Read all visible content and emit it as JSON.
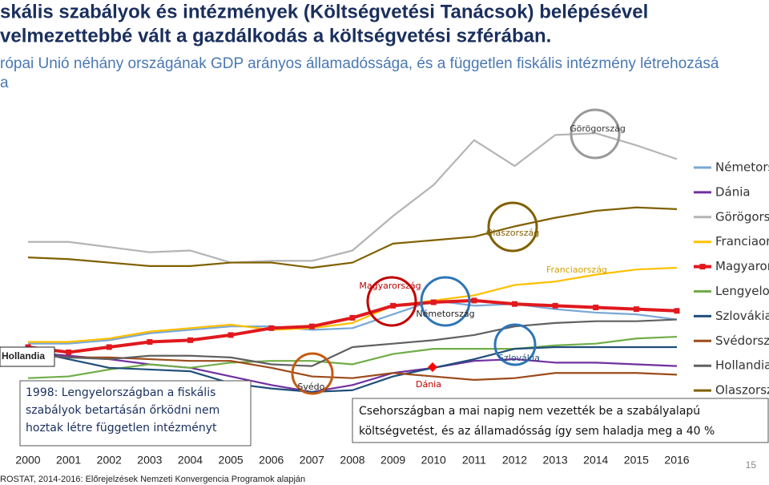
{
  "header": {
    "title_lines": [
      "skális szabályok és intézmények (Költségvetési Tanácsok) belépésével",
      "velmezettebbé vált a gazdálkodás a költségvetési szférában."
    ],
    "subtitle_lines": [
      "rópai Unió néhány országának GDP arányos államadóssága, és a független fiskális intézmény létrehozásá",
      "a"
    ]
  },
  "chart_data": {
    "type": "line",
    "categories": [
      "2000",
      "2001",
      "2002",
      "2003",
      "2004",
      "2005",
      "2006",
      "2007",
      "2008",
      "2009",
      "2010",
      "2011",
      "2012",
      "2013",
      "2014",
      "2015",
      "2016"
    ],
    "ylim": [
      0,
      185
    ],
    "series": [
      {
        "name": "Németors",
        "color": "#7aa7d6",
        "values": [
          55,
          55,
          57,
          61,
          63,
          65,
          65,
          63,
          64,
          72,
          80,
          77,
          78,
          75,
          73,
          72,
          69
        ]
      },
      {
        "name": "Dánia",
        "color": "#7030a0",
        "values": [
          50,
          48,
          46,
          43,
          41,
          36,
          31,
          27,
          31,
          38,
          41,
          45,
          46,
          44,
          44,
          43,
          42
        ]
      },
      {
        "name": "Görögors",
        "color": "#b4b4b4",
        "values": [
          114,
          114,
          111,
          108,
          109,
          102,
          103,
          103,
          109,
          129,
          147,
          173,
          158,
          176,
          177,
          170,
          162
        ]
      },
      {
        "name": "Franciaor",
        "color": "#ffc000",
        "values": [
          56,
          56,
          58,
          62,
          64,
          66,
          63,
          64,
          67,
          77,
          80,
          83,
          89,
          91,
          95,
          98,
          99
        ]
      },
      {
        "name": "Magyaror",
        "color": "#e0191e",
        "markers": true,
        "values": [
          53,
          50,
          53,
          56,
          57,
          60,
          64,
          65,
          70,
          77,
          79,
          80,
          78,
          77,
          76,
          75,
          74
        ]
      },
      {
        "name": "Lengyelor",
        "color": "#70ad47",
        "values": [
          35,
          36,
          40,
          43,
          41,
          44,
          45,
          45,
          43,
          49,
          52,
          52,
          52,
          54,
          55,
          58,
          59
        ]
      },
      {
        "name": "Szlovákia",
        "color": "#1f4e79",
        "values": [
          51,
          46,
          41,
          40,
          39,
          32,
          29,
          27,
          28,
          36,
          41,
          46,
          52,
          53,
          53,
          53,
          53
        ]
      },
      {
        "name": "Svédorsz",
        "color": "#9c4a1a",
        "values": [
          49,
          47,
          47,
          46,
          45,
          45,
          41,
          36,
          35,
          38,
          36,
          34,
          35,
          38,
          38,
          38,
          37
        ]
      },
      {
        "name": "Hollandia",
        "color": "#606060",
        "values": [
          49,
          47,
          46,
          48,
          48,
          47,
          43,
          42,
          53,
          55,
          57,
          60,
          65,
          67,
          68,
          68,
          69
        ]
      },
      {
        "name": "Olaszorsz",
        "color": "#806000",
        "values": [
          105,
          104,
          102,
          100,
          100,
          102,
          102,
          99,
          102,
          113,
          115,
          117,
          123,
          128,
          132,
          134,
          133
        ]
      }
    ],
    "annotations": [
      "Görögország",
      "Olaszország",
      "Franciaország",
      "Magyarország",
      "Németország",
      "Szlovákia",
      "Dánia",
      "Svédo.",
      "Hollandia"
    ],
    "notes": [
      [
        "1998: Lengyelországban a fiskális",
        "szabályok betartásán őrködni nem",
        "hoztak létre független intézményt"
      ],
      [
        "Csehországban a mai napig nem vezették be a szabályalapú",
        "költségvetést, és az államadósság így sem haladja meg a 40 %"
      ]
    ]
  },
  "footer": {
    "source": "ROSTAT, 2014-2016: Előrejelzések Nemzeti Konvergencia Programok alapján",
    "page": "15"
  }
}
